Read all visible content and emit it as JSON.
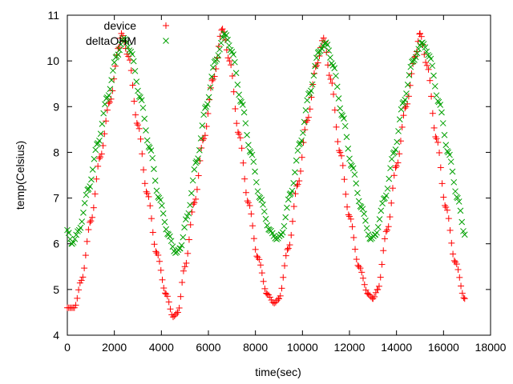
{
  "chart_data": {
    "type": "scatter",
    "xlabel": "time(sec)",
    "ylabel": "temp(Celsius)",
    "xlim": [
      0,
      18000
    ],
    "ylim": [
      4,
      11
    ],
    "xticks": [
      "0",
      "2000",
      "4000",
      "6000",
      "8000",
      "10000",
      "12000",
      "14000",
      "16000",
      "18000"
    ],
    "yticks": [
      "4",
      "5",
      "6",
      "7",
      "8",
      "9",
      "10",
      "11"
    ],
    "grid": false,
    "legend_position": "top-left",
    "series": [
      {
        "name": "device",
        "marker": "plus",
        "color": "#ff0000",
        "points": [
          [
            0,
            4.6
          ],
          [
            300,
            4.6
          ],
          [
            600,
            5.2
          ],
          [
            1000,
            6.5
          ],
          [
            1400,
            7.9
          ],
          [
            1800,
            9.1
          ],
          [
            2200,
            10.3
          ],
          [
            2300,
            10.6
          ],
          [
            2600,
            10.1
          ],
          [
            3000,
            8.6
          ],
          [
            3400,
            7.1
          ],
          [
            3800,
            5.8
          ],
          [
            4200,
            4.9
          ],
          [
            4500,
            4.4
          ],
          [
            4700,
            4.5
          ],
          [
            5000,
            5.5
          ],
          [
            5400,
            6.9
          ],
          [
            5800,
            8.3
          ],
          [
            6200,
            9.6
          ],
          [
            6600,
            10.7
          ],
          [
            6900,
            10.0
          ],
          [
            7300,
            8.4
          ],
          [
            7700,
            6.9
          ],
          [
            8100,
            5.7
          ],
          [
            8500,
            4.9
          ],
          [
            8800,
            4.7
          ],
          [
            9000,
            4.8
          ],
          [
            9400,
            5.9
          ],
          [
            9800,
            7.3
          ],
          [
            10200,
            8.7
          ],
          [
            10600,
            9.9
          ],
          [
            10900,
            10.5
          ],
          [
            11200,
            9.6
          ],
          [
            11600,
            8.0
          ],
          [
            12000,
            6.6
          ],
          [
            12400,
            5.5
          ],
          [
            12800,
            4.9
          ],
          [
            13000,
            4.8
          ],
          [
            13200,
            5.0
          ],
          [
            13600,
            6.3
          ],
          [
            14000,
            7.7
          ],
          [
            14400,
            9.0
          ],
          [
            14800,
            10.1
          ],
          [
            15000,
            10.6
          ],
          [
            15300,
            9.9
          ],
          [
            15700,
            8.3
          ],
          [
            16100,
            6.8
          ],
          [
            16500,
            5.6
          ],
          [
            16900,
            4.8
          ]
        ]
      },
      {
        "name": "deltaOHM",
        "marker": "cross",
        "color": "#00a000",
        "points": [
          [
            0,
            6.3
          ],
          [
            200,
            6.0
          ],
          [
            500,
            6.3
          ],
          [
            900,
            7.2
          ],
          [
            1300,
            8.2
          ],
          [
            1700,
            9.2
          ],
          [
            2100,
            10.1
          ],
          [
            2400,
            10.5
          ],
          [
            2700,
            10.2
          ],
          [
            3100,
            9.2
          ],
          [
            3500,
            8.1
          ],
          [
            3900,
            7.0
          ],
          [
            4300,
            6.2
          ],
          [
            4600,
            5.8
          ],
          [
            4800,
            5.9
          ],
          [
            5100,
            6.6
          ],
          [
            5500,
            7.8
          ],
          [
            5900,
            9.0
          ],
          [
            6300,
            10.0
          ],
          [
            6700,
            10.6
          ],
          [
            7000,
            10.2
          ],
          [
            7400,
            9.1
          ],
          [
            7800,
            8.0
          ],
          [
            8200,
            7.0
          ],
          [
            8600,
            6.3
          ],
          [
            8900,
            6.1
          ],
          [
            9100,
            6.2
          ],
          [
            9500,
            7.1
          ],
          [
            9900,
            8.2
          ],
          [
            10300,
            9.3
          ],
          [
            10700,
            10.2
          ],
          [
            11000,
            10.4
          ],
          [
            11300,
            9.9
          ],
          [
            11700,
            8.8
          ],
          [
            12100,
            7.7
          ],
          [
            12500,
            6.8
          ],
          [
            12900,
            6.1
          ],
          [
            13100,
            6.2
          ],
          [
            13500,
            7.0
          ],
          [
            13900,
            8.0
          ],
          [
            14300,
            9.1
          ],
          [
            14700,
            10.0
          ],
          [
            15100,
            10.4
          ],
          [
            15400,
            10.1
          ],
          [
            15800,
            9.1
          ],
          [
            16200,
            8.0
          ],
          [
            16600,
            7.0
          ],
          [
            16900,
            6.2
          ]
        ]
      }
    ]
  }
}
